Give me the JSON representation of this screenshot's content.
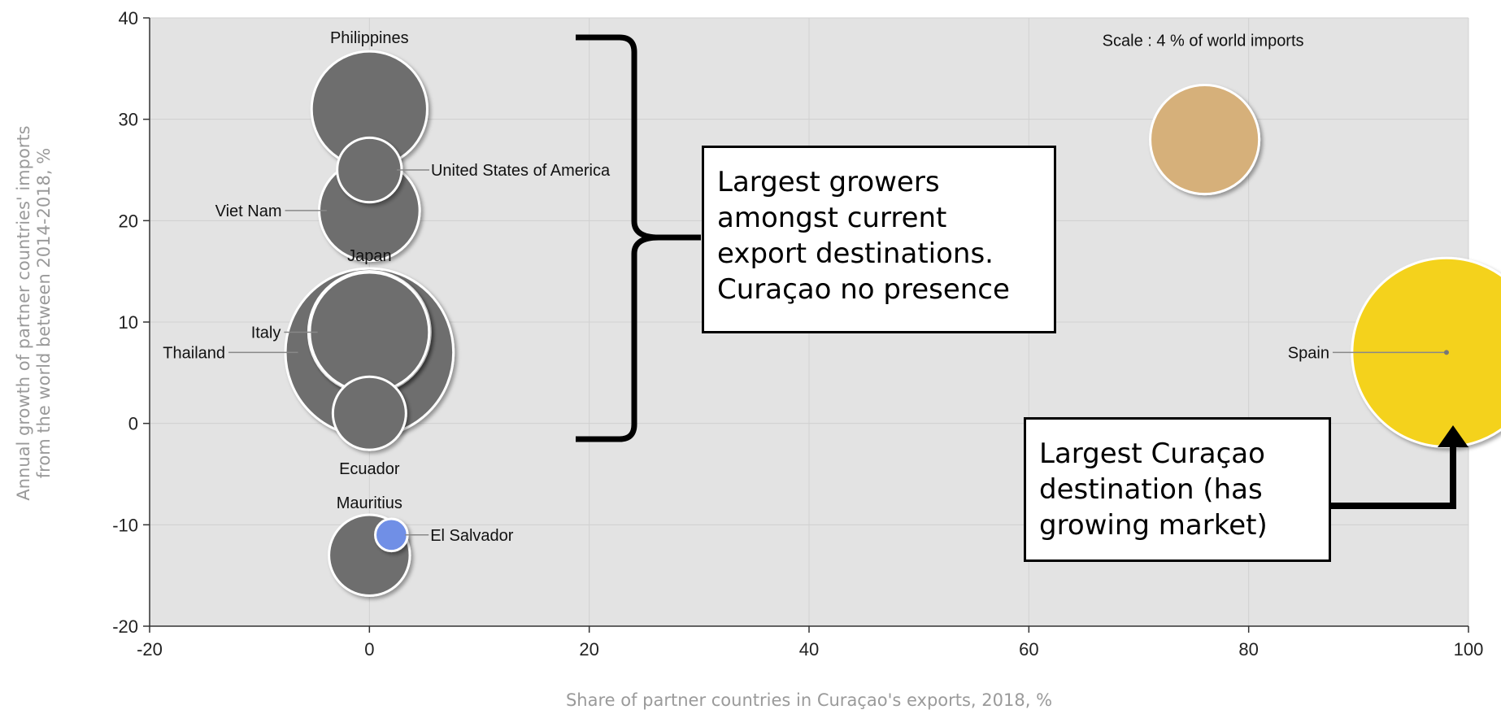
{
  "chart_data": {
    "type": "scatter",
    "title": "",
    "xlabel": "Share of partner countries in Curaçao's exports, 2018, %",
    "ylabel_lines": [
      "Annual growth of partner countries' imports",
      "from the world between 2014-2018, %"
    ],
    "xlim": [
      -20,
      100
    ],
    "ylim": [
      -20,
      40
    ],
    "x_ticks": [
      "-20",
      "0",
      "20",
      "40",
      "60",
      "80",
      "100"
    ],
    "y_ticks": [
      "-20",
      "-10",
      "0",
      "10",
      "20",
      "30",
      "40"
    ],
    "grid": true,
    "bubble_size_unit": "% of world imports",
    "points": [
      {
        "label": "Philippines",
        "x": 0,
        "y": 31,
        "size": 4.5,
        "color": "#6e6e6e"
      },
      {
        "label": "United States of America",
        "x": 0,
        "y": 25,
        "size": 1.4,
        "color": "#6e6e6e"
      },
      {
        "label": "Viet Nam",
        "x": 0,
        "y": 21,
        "size": 3.4,
        "color": "#6e6e6e"
      },
      {
        "label": "Thailand",
        "x": 0,
        "y": 7,
        "size": 9.5,
        "color": "#6e6e6e"
      },
      {
        "label": "Italy",
        "x": 0,
        "y": 9,
        "size": 5.0,
        "color": "#6e6e6e"
      },
      {
        "label": "Japan",
        "x": 0,
        "y": 9,
        "size": 4.8,
        "color": "#6e6e6e"
      },
      {
        "label": "Ecuador",
        "x": 0,
        "y": 1,
        "size": 1.8,
        "color": "#6e6e6e"
      },
      {
        "label": "Mauritius",
        "x": 0,
        "y": -13,
        "size": 2.2,
        "color": "#6e6e6e"
      },
      {
        "label": "El Salvador",
        "x": 2,
        "y": -11,
        "size": 0.35,
        "color": "#6f8fe6"
      },
      {
        "label": "Spain",
        "x": 98,
        "y": 7,
        "size": 12.0,
        "color": "#f4d21f"
      }
    ],
    "scale_marker": {
      "label": "Scale : 4 % of world imports",
      "x": 76,
      "y": 28,
      "size": 4,
      "color": "#d6b07a"
    }
  },
  "callouts": {
    "growers": "Largest growers amongst current export destinations. Curaçao no presence",
    "largest": "Largest Curaçao destination (has growing market)"
  }
}
